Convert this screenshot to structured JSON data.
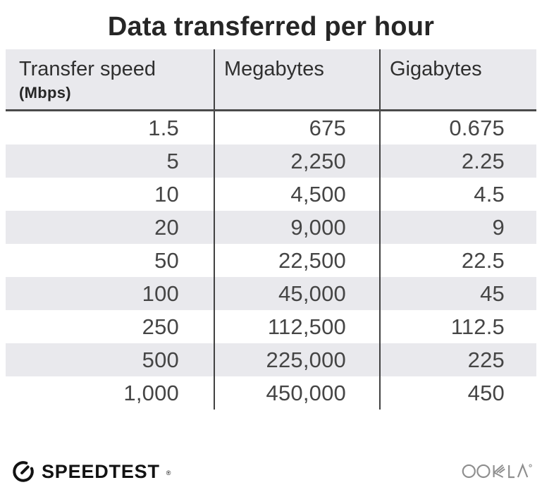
{
  "title": "Data transferred per hour",
  "table": {
    "columns": [
      {
        "title": "Transfer speed",
        "unit": "(Mbps)"
      },
      {
        "title": "Megabytes"
      },
      {
        "title": "Gigabytes"
      }
    ],
    "rows": [
      [
        "1.5",
        "675",
        "0.675"
      ],
      [
        "5",
        "2,250",
        "2.25"
      ],
      [
        "10",
        "4,500",
        "4.5"
      ],
      [
        "20",
        "9,000",
        "9"
      ],
      [
        "50",
        "22,500",
        "22.5"
      ],
      [
        "100",
        "45,000",
        "45"
      ],
      [
        "250",
        "112,500",
        "112.5"
      ],
      [
        "500",
        "225,000",
        "225"
      ],
      [
        "1,000",
        "450,000",
        "450"
      ]
    ]
  },
  "footer": {
    "speedtest_text": "SPEEDTEST",
    "speedtest_reg": "®",
    "ookla_text": "OOKLA",
    "ookla_reg": "®"
  },
  "colors": {
    "stripe_bg": "#e9e9ed",
    "header_bg": "#e9e9ed",
    "divider": "#414141",
    "header_underline": "#4a4a4a",
    "title_text": "#262626",
    "body_text": "#454545",
    "speedtest_black": "#121212",
    "ookla_gray": "#8e8e8e"
  },
  "chart_data": {
    "type": "table",
    "title": "Data transferred per hour",
    "columns": [
      "Transfer speed (Mbps)",
      "Megabytes",
      "Gigabytes"
    ],
    "rows": [
      [
        1.5,
        675,
        0.675
      ],
      [
        5,
        2250,
        2.25
      ],
      [
        10,
        4500,
        4.5
      ],
      [
        20,
        9000,
        9
      ],
      [
        50,
        22500,
        22.5
      ],
      [
        100,
        45000,
        45
      ],
      [
        250,
        112500,
        112.5
      ],
      [
        500,
        225000,
        225
      ],
      [
        1000,
        450000,
        450
      ]
    ],
    "layout": {
      "striped_rows": true,
      "column_dividers": true,
      "value_alignment": "right"
    },
    "branding": [
      "SPEEDTEST",
      "OOKLA"
    ]
  }
}
